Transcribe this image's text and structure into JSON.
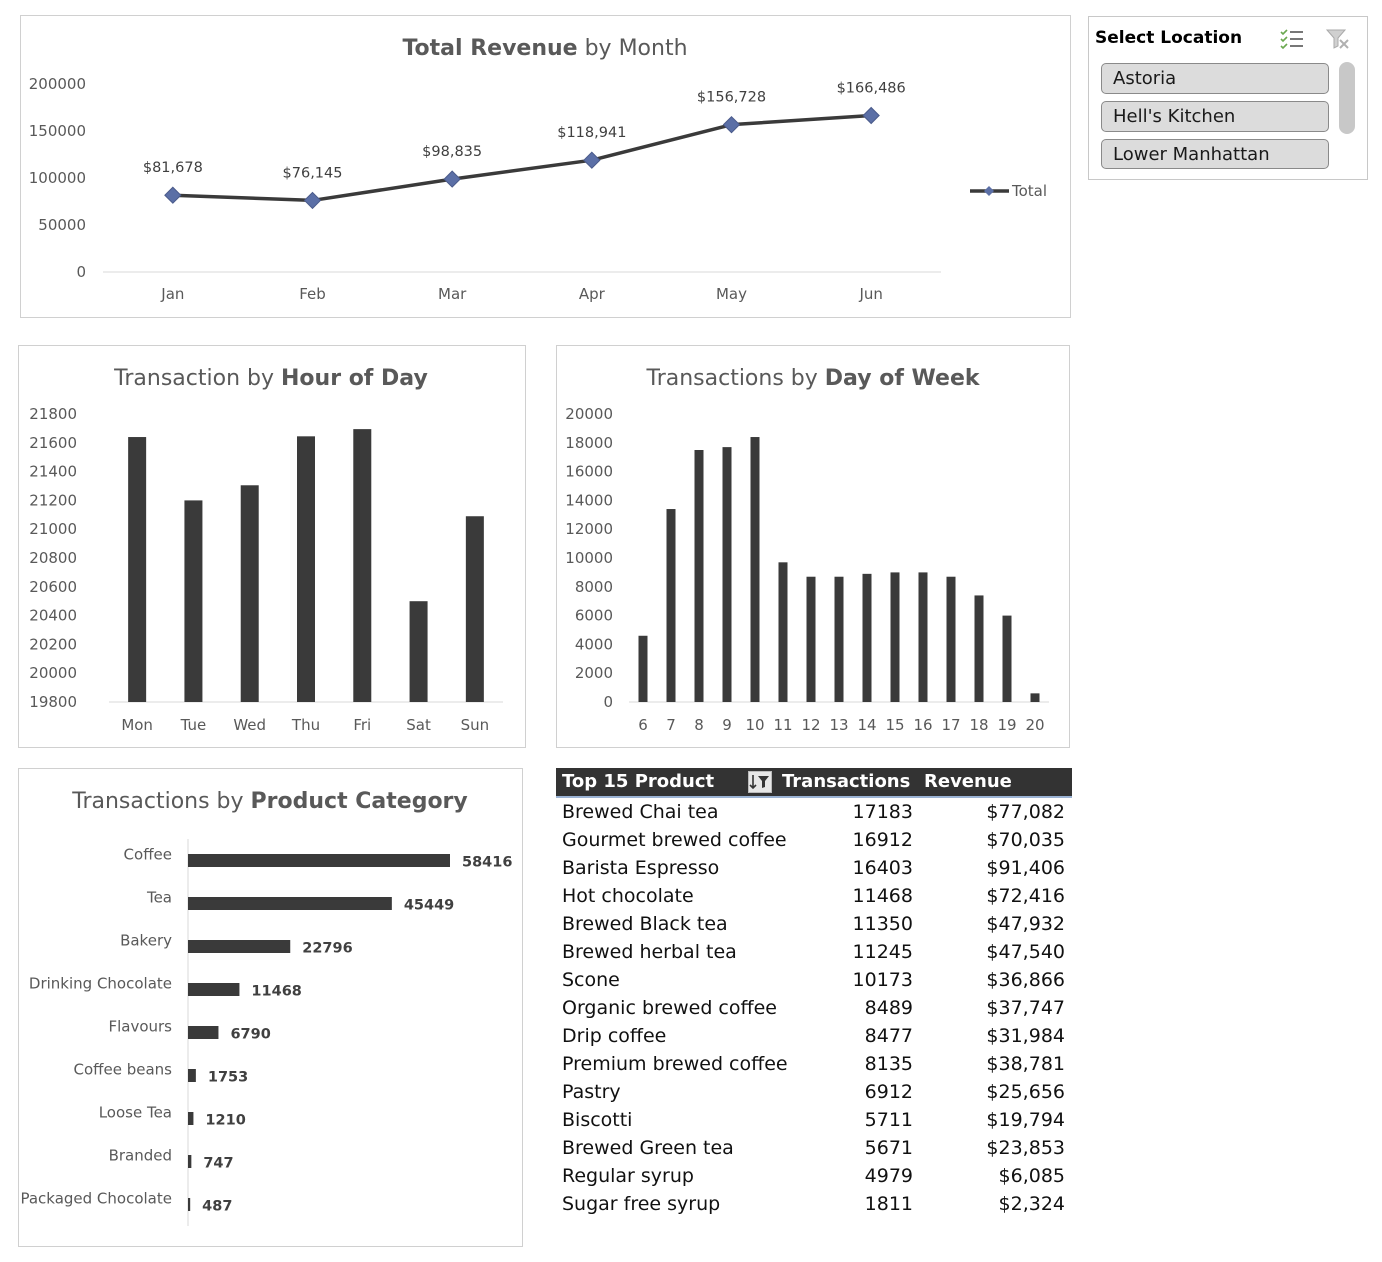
{
  "colors": {
    "bar": "#3a3a3a",
    "line": "#3a3a3a",
    "marker": "#5b6fa6",
    "axis": "#d9d9d9"
  },
  "slicer": {
    "title": "Select Location",
    "icons": [
      "multi-select-icon",
      "clear-filter-icon"
    ],
    "items": [
      "Astoria",
      "Hell's Kitchen",
      "Lower Manhattan"
    ]
  },
  "table": {
    "headers": {
      "product": "Top 15 Product",
      "transactions": "Transactions",
      "revenue": "Revenue"
    },
    "filter_icon": "sort-filter-icon",
    "rows": [
      {
        "product": "Brewed Chai tea",
        "transactions": "17183",
        "revenue": "$77,082"
      },
      {
        "product": "Gourmet brewed coffee",
        "transactions": "16912",
        "revenue": "$70,035"
      },
      {
        "product": "Barista Espresso",
        "transactions": "16403",
        "revenue": "$91,406"
      },
      {
        "product": "Hot chocolate",
        "transactions": "11468",
        "revenue": "$72,416"
      },
      {
        "product": "Brewed Black tea",
        "transactions": "11350",
        "revenue": "$47,932"
      },
      {
        "product": "Brewed herbal tea",
        "transactions": "11245",
        "revenue": "$47,540"
      },
      {
        "product": "Scone",
        "transactions": "10173",
        "revenue": "$36,866"
      },
      {
        "product": "Organic brewed coffee",
        "transactions": "8489",
        "revenue": "$37,747"
      },
      {
        "product": "Drip coffee",
        "transactions": "8477",
        "revenue": "$31,984"
      },
      {
        "product": "Premium brewed coffee",
        "transactions": "8135",
        "revenue": "$38,781"
      },
      {
        "product": "Pastry",
        "transactions": "6912",
        "revenue": "$25,656"
      },
      {
        "product": "Biscotti",
        "transactions": "5711",
        "revenue": "$19,794"
      },
      {
        "product": "Brewed Green tea",
        "transactions": "5671",
        "revenue": "$23,853"
      },
      {
        "product": "Regular syrup",
        "transactions": "4979",
        "revenue": "$6,085"
      },
      {
        "product": "Sugar free syrup",
        "transactions": "1811",
        "revenue": "$2,324"
      }
    ]
  },
  "chart_data": [
    {
      "type": "line",
      "title_bold": "Total Revenue",
      "title_rest": " by Month",
      "categories": [
        "Jan",
        "Feb",
        "Mar",
        "Apr",
        "May",
        "Jun"
      ],
      "series": [
        {
          "name": "Total",
          "values": [
            81678,
            76145,
            98835,
            118941,
            156728,
            166486
          ]
        }
      ],
      "data_labels": [
        "$81,678",
        "$76,145",
        "$98,835",
        "$118,941",
        "$156,728",
        "$166,486"
      ],
      "ylim": [
        0,
        200000
      ],
      "yticks": [
        "0",
        "50000",
        "100000",
        "150000",
        "200000"
      ],
      "legend": "right",
      "grid": false
    },
    {
      "type": "bar",
      "title_rest": "Transaction by ",
      "title_bold": "Hour of Day",
      "categories": [
        "Mon",
        "Tue",
        "Wed",
        "Thu",
        "Fri",
        "Sat",
        "Sun"
      ],
      "values": [
        21640,
        21200,
        21305,
        21645,
        21695,
        20500,
        21090
      ],
      "ylim": [
        19800,
        21800
      ],
      "yticks": [
        "19800",
        "20000",
        "20200",
        "20400",
        "20600",
        "20800",
        "21000",
        "21200",
        "21400",
        "21600",
        "21800"
      ],
      "grid": false
    },
    {
      "type": "bar",
      "title_rest": "Transactions by ",
      "title_bold": "Day of Week",
      "categories": [
        "6",
        "7",
        "8",
        "9",
        "10",
        "11",
        "12",
        "13",
        "14",
        "15",
        "16",
        "17",
        "18",
        "19",
        "20"
      ],
      "values": [
        4600,
        13400,
        17500,
        17700,
        18400,
        9700,
        8700,
        8700,
        8900,
        9000,
        9000,
        8700,
        7400,
        6000,
        600
      ],
      "ylim": [
        0,
        20000
      ],
      "yticks": [
        "0",
        "2000",
        "4000",
        "6000",
        "8000",
        "10000",
        "12000",
        "14000",
        "16000",
        "18000",
        "20000"
      ],
      "grid": false
    },
    {
      "type": "bar",
      "orientation": "horizontal",
      "title_rest": "Transactions by ",
      "title_bold": "Product Category",
      "categories": [
        "Coffee",
        "Tea",
        "Bakery",
        "Drinking Chocolate",
        "Flavours",
        "Coffee beans",
        "Loose Tea",
        "Branded",
        "Packaged Chocolate"
      ],
      "values": [
        58416,
        45449,
        22796,
        11468,
        6790,
        1753,
        1210,
        747,
        487
      ],
      "data_labels": [
        "58416",
        "45449",
        "22796",
        "11468",
        "6790",
        "1753",
        "1210",
        "747",
        "487"
      ],
      "grid": false
    }
  ]
}
